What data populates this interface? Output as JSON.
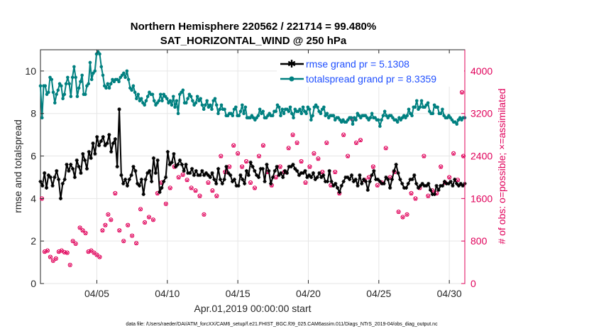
{
  "chart_data": {
    "type": "line",
    "title": "Northern Hemisphere 220562 / 221714 = 99.480%",
    "subtitle": "SAT_HORIZONTAL_WIND @ 250 hPa",
    "xlabel": "Apr.01,2019 00:00:00 start",
    "ylabel": "rmse and totalspread",
    "ylabel_right": "# of obs: o=possible; ×=assimilated",
    "footnote": "data file: /Users/raeder/DAI/ATM_forcXX/CAM6_setup/f.e21.FHIST_BGC.f09_025.CAM6assim.011/Diags_NTrS_2019-04/obs_diag_output.nc",
    "xlim": [
      1.0,
      31.1
    ],
    "ylim": [
      0,
      11
    ],
    "ylim_right": [
      0,
      4400
    ],
    "x_ticks": [
      5,
      10,
      15,
      20,
      25,
      30
    ],
    "x_tick_labels": [
      "04/05",
      "04/10",
      "04/15",
      "04/20",
      "04/25",
      "04/30"
    ],
    "y_ticks": [
      0,
      2,
      4,
      6,
      8,
      10
    ],
    "y_tick_labels": [
      "0",
      "2",
      "4",
      "6",
      "8",
      "10"
    ],
    "y_right_ticks": [
      0,
      800,
      1600,
      2400,
      3200,
      4000
    ],
    "y_right_tick_labels": [
      "0",
      "800",
      "1600",
      "2400",
      "3200",
      "4000"
    ],
    "grid": true,
    "legend_position": "top-right",
    "colors": {
      "rmse": "#000000",
      "spread": "#008080",
      "obs": "#e0005a",
      "legend_text": "#1f4fff",
      "axis": "#262626"
    },
    "series": [
      {
        "name": "rmse grand pr = 5.1308",
        "axis": "left",
        "values": [
          4.8,
          4.6,
          5.2,
          4.5,
          5.1,
          5.0,
          4.6,
          5.0,
          5.3,
          4.9,
          4.0,
          4.7,
          4.9,
          5.6,
          5.3,
          5.6,
          5.4,
          5.0,
          5.8,
          5.5,
          5.2,
          6.1,
          5.8,
          5.4,
          6.2,
          5.9,
          6.6,
          6.1,
          6.9,
          6.5,
          6.7,
          6.9,
          6.5,
          6.6,
          7.0,
          6.2,
          6.6,
          6.8,
          5.5,
          8.2,
          5.1,
          4.7,
          4.9,
          4.6,
          4.9,
          5.1,
          5.5,
          5.3,
          4.7,
          4.6,
          4.9,
          4.2,
          4.9,
          5.2,
          5.3,
          4.8,
          5.9,
          5.2,
          5.8,
          4.3,
          4.5,
          4.8,
          5.0,
          6.2,
          5.6,
          5.7,
          6.1,
          5.5,
          5.6,
          5.8,
          5.6,
          5.3,
          5.6,
          5.2,
          5.2,
          5.4,
          5.1,
          5.3,
          5.1,
          5.1,
          5.3,
          5.1,
          5.2,
          5.1,
          5.0,
          5.2,
          4.9,
          4.7,
          5.4,
          4.9,
          4.7,
          4.9,
          5.5,
          5.2,
          5.1,
          4.8,
          4.9,
          4.6,
          4.6,
          5.1,
          4.9,
          4.7,
          5.3,
          5.1,
          5.7,
          5.5,
          5.3,
          5.1,
          5.0,
          5.4,
          5.4,
          4.8,
          5.6,
          5.3,
          4.7,
          5.0,
          5.3,
          5.5,
          5.1,
          5.2,
          5.0,
          5.3,
          5.2,
          5.5,
          5.5,
          5.6,
          5.4,
          5.3,
          5.1,
          5.2,
          5.2,
          5.3,
          5.0,
          5.1,
          5.0,
          5.2,
          4.9,
          5.0,
          5.2,
          5.0,
          5.1,
          4.8,
          4.8,
          5.3,
          4.8,
          4.6,
          4.7,
          4.5,
          4.3,
          4.6,
          4.8,
          5.0,
          5.0,
          4.9,
          5.1,
          4.8,
          4.9,
          4.6,
          5.1,
          4.7,
          4.9,
          4.8,
          4.4,
          4.8,
          5.1,
          5.3,
          4.9,
          4.9,
          4.8,
          4.7,
          4.7,
          5.0,
          4.9,
          4.5,
          4.9,
          5.3,
          5.6,
          5.2,
          4.9,
          4.7,
          4.5,
          4.5,
          4.7,
          4.9,
          4.9,
          5.1,
          4.7,
          4.5,
          4.6,
          4.7,
          4.6,
          4.6,
          4.7,
          4.4,
          4.2,
          4.2,
          4.6,
          4.4,
          4.6,
          4.6,
          4.8,
          4.7,
          4.7,
          4.8,
          4.6,
          4.9,
          4.7,
          4.6,
          4.7,
          4.6,
          4.7
        ]
      },
      {
        "name": "totalspread grand pr = 8.3359",
        "axis": "left",
        "values": [
          9.3,
          7.8,
          9.3,
          9.3,
          8.9,
          9.0,
          9.7,
          9.6,
          9.0,
          8.5,
          8.9,
          9.1,
          9.4,
          9.3,
          8.7,
          8.9,
          9.4,
          9.7,
          9.4,
          8.8,
          9.7,
          10.2,
          9.7,
          8.8,
          9.2,
          9.5,
          9.8,
          8.9,
          8.9,
          9.3,
          9.4,
          10.4,
          9.6,
          9.9,
          10.0,
          10.8,
          10.9,
          10.8,
          10.2,
          9.8,
          9.3,
          9.2,
          9.4,
          9.2,
          9.4,
          9.6,
          9.5,
          9.6,
          9.6,
          9.5,
          9.7,
          9.8,
          9.9,
          9.7,
          10.0,
          9.6,
          9.2,
          9.1,
          9.3,
          9.0,
          8.7,
          8.9,
          8.6,
          8.7,
          8.5,
          8.4,
          8.6,
          8.8,
          9.0,
          8.9,
          8.9,
          8.6,
          8.4,
          8.5,
          8.6,
          8.9,
          8.6,
          8.9,
          8.8,
          8.7,
          8.5,
          8.6,
          8.4,
          8.8,
          8.3,
          8.6,
          8.0,
          8.9,
          9.0,
          9.1,
          8.5,
          8.5,
          8.7,
          8.9,
          8.8,
          8.6,
          8.4,
          8.5,
          8.8,
          8.6,
          8.7,
          8.4,
          8.2,
          8.4,
          8.6,
          8.3,
          8.4,
          8.2,
          8.6,
          8.7,
          8.4,
          8.0,
          8.2,
          8.4,
          8.2,
          8.2,
          7.9,
          7.9,
          8.0,
          8.0,
          7.9,
          8.2,
          8.3,
          7.9,
          7.9,
          8.1,
          8.4,
          8.0,
          8.3,
          7.8,
          7.8,
          7.8,
          7.9,
          7.8,
          7.7,
          7.8,
          7.9,
          8.2,
          8.0,
          8.1,
          7.8,
          7.8,
          7.9,
          8.0,
          7.9,
          7.9,
          8.1,
          8.1,
          8.4,
          8.3,
          7.9,
          8.2,
          8.0,
          8.2,
          8.2,
          8.1,
          8.3,
          8.0,
          7.8,
          8.2,
          8.1,
          8.1,
          8.2,
          8.0,
          8.3,
          8.1,
          8.0,
          8.3,
          8.2,
          7.7,
          7.9,
          8.3,
          8.4,
          8.3,
          8.1,
          8.0,
          8.2,
          8.3,
          7.9,
          8.0,
          7.8,
          7.9,
          7.9,
          7.9,
          7.7,
          7.8,
          7.8,
          7.7,
          7.6,
          7.7,
          7.6,
          7.6,
          7.7,
          7.8,
          7.8,
          7.5,
          7.8,
          7.7,
          8.0,
          7.9,
          7.8,
          7.9,
          7.9,
          7.9,
          7.8,
          7.7,
          7.8,
          8.0,
          7.8,
          7.8,
          7.7,
          7.7,
          7.4,
          7.7,
          7.9,
          8.1,
          7.9,
          7.8,
          7.9,
          7.9,
          7.8,
          7.7,
          7.7,
          7.6,
          7.8,
          7.7,
          7.8,
          7.9,
          7.8,
          7.9,
          8.2,
          8.0,
          7.9,
          8.3,
          8.3,
          8.6,
          8.2,
          8.3,
          8.6,
          8.3,
          8.3,
          8.4,
          8.5,
          8.1,
          8.0,
          8.0,
          8.4,
          8.3,
          8.3,
          8.0,
          8.0,
          8.2,
          7.9,
          7.8,
          7.8,
          7.9,
          7.8,
          7.7,
          7.6,
          7.6,
          7.5,
          7.7,
          7.8,
          7.7,
          7.8,
          7.8
        ]
      },
      {
        "name": "obs",
        "axis": "right",
        "marker": "o",
        "x": [
          1.1,
          1.3,
          1.5,
          1.7,
          1.9,
          2.1,
          2.3,
          2.5,
          2.7,
          2.9,
          3.1,
          3.3,
          3.5,
          3.8,
          4.0,
          4.2,
          4.4,
          4.6,
          4.8,
          5.0,
          5.2,
          5.4,
          5.6,
          5.8,
          6.0,
          6.3,
          6.6,
          6.9,
          7.2,
          7.5,
          7.8,
          8.1,
          8.4,
          8.7,
          9.0,
          9.3,
          9.6,
          9.9,
          10.2,
          10.5,
          10.8,
          11.1,
          11.4,
          11.7,
          12.0,
          12.3,
          12.6,
          12.9,
          13.2,
          13.5,
          13.8,
          14.1,
          14.4,
          14.7,
          15.0,
          15.3,
          15.6,
          15.9,
          16.2,
          16.5,
          16.8,
          17.1,
          17.4,
          17.7,
          18.0,
          18.3,
          18.6,
          18.9,
          19.2,
          19.5,
          19.8,
          20.1,
          20.4,
          20.7,
          21.0,
          21.3,
          21.6,
          21.9,
          22.2,
          22.5,
          22.8,
          23.1,
          23.4,
          23.7,
          24.0,
          24.3,
          24.6,
          24.9,
          25.2,
          25.5,
          25.8,
          26.1,
          26.4,
          26.7,
          27.0,
          27.3,
          27.6,
          27.9,
          28.2,
          28.5,
          28.8,
          29.1,
          29.4,
          29.7,
          30.0,
          30.3,
          30.6,
          30.9,
          31.0
        ],
        "values": [
          1600,
          600,
          620,
          500,
          430,
          470,
          600,
          620,
          590,
          580,
          350,
          800,
          750,
          1050,
          1000,
          950,
          600,
          620,
          580,
          540,
          500,
          1000,
          1100,
          1300,
          1200,
          1700,
          1000,
          800,
          1100,
          900,
          760,
          1400,
          1150,
          1250,
          1200,
          1700,
          1900,
          1500,
          1800,
          2200,
          2000,
          2050,
          1950,
          1800,
          1750,
          1650,
          1300,
          1900,
          1750,
          1650,
          2400,
          2100,
          2200,
          2600,
          2450,
          2200,
          2300,
          1900,
          1800,
          2400,
          2600,
          2100,
          1850,
          2000,
          2200,
          2100,
          2550,
          2800,
          2650,
          2300,
          1900,
          2200,
          2450,
          2350,
          2100,
          2650,
          1850,
          2100,
          1700,
          2800,
          2400,
          3100,
          2650,
          2700,
          1950,
          2000,
          2200,
          1850,
          1900,
          2550,
          2000,
          2100,
          1350,
          1250,
          1300,
          1700,
          1600,
          1800,
          2400,
          1650,
          1750,
          1700,
          2200,
          1900,
          2000,
          2450,
          1950,
          3600,
          2400
        ]
      },
      {
        "name": "assimilated",
        "axis": "right",
        "marker": "x",
        "x": [
          1.1,
          1.3,
          1.5,
          1.7,
          1.9,
          2.1,
          2.3,
          2.5,
          2.7,
          2.9,
          3.1,
          3.3,
          3.5,
          3.8,
          4.0,
          4.2,
          4.4,
          4.6,
          4.8,
          5.0,
          5.2,
          5.4,
          5.6,
          5.8,
          6.0,
          6.3,
          6.6,
          6.9,
          7.2,
          7.5,
          7.8,
          8.1,
          8.4,
          8.7,
          9.0,
          9.3,
          9.6,
          9.9,
          10.2,
          10.5,
          10.8,
          11.1,
          11.4,
          11.7,
          12.0,
          12.3,
          12.6,
          12.9,
          13.2,
          13.5,
          13.8,
          14.1,
          14.4,
          14.7,
          15.0,
          15.3,
          15.6,
          15.9,
          16.2,
          16.5,
          16.8,
          17.1,
          17.4,
          17.7,
          18.0,
          18.3,
          18.6,
          18.9,
          19.2,
          19.5,
          19.8,
          20.1,
          20.4,
          20.7,
          21.0,
          21.3,
          21.6,
          21.9,
          22.2,
          22.5,
          22.8,
          23.1,
          23.4,
          23.7,
          24.0,
          24.3,
          24.6,
          24.9,
          25.2,
          25.5,
          25.8,
          26.1,
          26.4,
          26.7,
          27.0,
          27.3,
          27.6,
          27.9,
          28.2,
          28.5,
          28.8,
          29.1,
          29.4,
          29.7,
          30.0,
          30.3,
          30.6,
          30.9,
          31.0
        ],
        "values": [
          1590,
          595,
          615,
          495,
          425,
          465,
          595,
          615,
          585,
          575,
          345,
          795,
          745,
          1045,
          995,
          945,
          595,
          615,
          575,
          535,
          495,
          995,
          1095,
          1295,
          1195,
          1690,
          995,
          795,
          1095,
          895,
          755,
          1395,
          1145,
          1245,
          1195,
          1690,
          1890,
          1495,
          1790,
          2190,
          1990,
          2040,
          1940,
          1790,
          1740,
          1640,
          1295,
          1890,
          1740,
          1640,
          2390,
          2090,
          2190,
          2590,
          2440,
          2190,
          2290,
          1890,
          1790,
          2390,
          2590,
          2090,
          1840,
          1990,
          2190,
          2090,
          2540,
          2790,
          2640,
          2290,
          1890,
          2190,
          2440,
          2340,
          2090,
          2640,
          1840,
          2090,
          1690,
          2790,
          2390,
          3090,
          2640,
          2690,
          1940,
          1990,
          2190,
          1840,
          1890,
          2540,
          1990,
          2090,
          1345,
          1245,
          1295,
          1690,
          1590,
          1790,
          2390,
          1640,
          1740,
          1690,
          2190,
          1890,
          1990,
          2440,
          1940,
          3590,
          2390
        ]
      }
    ]
  }
}
